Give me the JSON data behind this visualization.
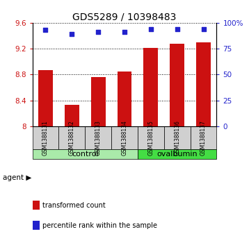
{
  "title": "GDS5289 / 10398483",
  "samples": [
    "GSM1388131",
    "GSM1388132",
    "GSM1388133",
    "GSM1388134",
    "GSM1388135",
    "GSM1388136",
    "GSM1388137"
  ],
  "bar_values": [
    8.87,
    8.33,
    8.76,
    8.85,
    9.21,
    9.27,
    9.3
  ],
  "dot_values": [
    93,
    89,
    91,
    91,
    94,
    94,
    94
  ],
  "ylim_left": [
    8.0,
    9.6
  ],
  "ylim_right": [
    0,
    100
  ],
  "yticks_left": [
    8.0,
    8.4,
    8.8,
    9.2,
    9.6
  ],
  "ytick_labels_left": [
    "8",
    "8.4",
    "8.8",
    "9.2",
    "9.6"
  ],
  "yticks_right": [
    0,
    25,
    50,
    75,
    100
  ],
  "ytick_labels_right": [
    "0",
    "25",
    "50",
    "75",
    "100%"
  ],
  "bar_color": "#cc1111",
  "dot_color": "#2222cc",
  "label_bg_color": "#d0d0d0",
  "groups": [
    {
      "label": "control",
      "indices": [
        0,
        1,
        2,
        3
      ],
      "color": "#aaeaaa"
    },
    {
      "label": "ovalbumin",
      "indices": [
        4,
        5,
        6
      ],
      "color": "#44dd44"
    }
  ],
  "agent_label": "agent",
  "legend_items": [
    {
      "label": "transformed count",
      "color": "#cc1111"
    },
    {
      "label": "percentile rank within the sample",
      "color": "#2222cc"
    }
  ],
  "title_fontsize": 10,
  "bar_width": 0.55
}
